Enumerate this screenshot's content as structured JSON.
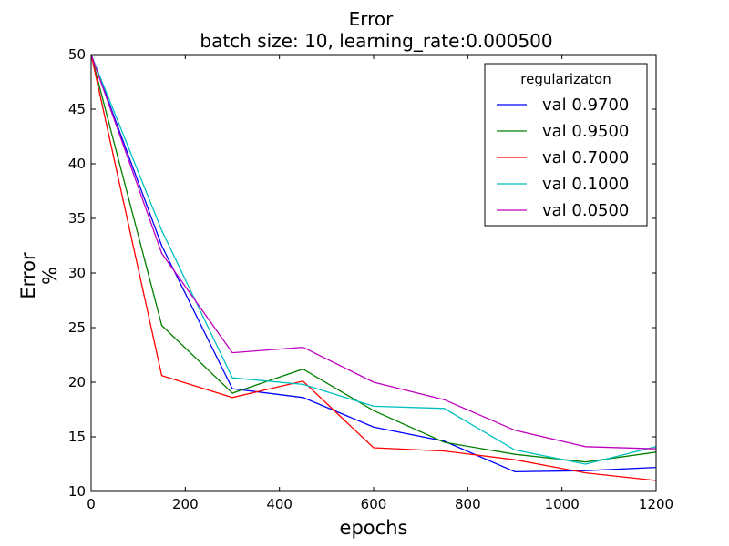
{
  "chart_data": {
    "type": "line",
    "title": "Error",
    "subtitle": "batch size: 10, learning_rate:0.000500",
    "xlabel": "epochs",
    "ylabel_lines": [
      "Error",
      "%"
    ],
    "xlim": [
      0,
      1200
    ],
    "ylim": [
      10,
      50
    ],
    "xticks": [
      0,
      200,
      400,
      600,
      800,
      1000,
      1200
    ],
    "yticks": [
      10,
      15,
      20,
      25,
      30,
      35,
      40,
      45,
      50
    ],
    "grid": false,
    "legend_title": "regularizaton",
    "legend_position": "top-right",
    "x": [
      0,
      150,
      300,
      450,
      600,
      750,
      900,
      1050,
      1200
    ],
    "series": [
      {
        "name": "val 0.9700",
        "color": "#0000ff",
        "values": [
          50,
          32.5,
          19.4,
          18.6,
          15.9,
          14.6,
          11.8,
          11.9,
          12.2
        ]
      },
      {
        "name": "val 0.9500",
        "color": "#008000",
        "values": [
          50,
          25.2,
          19.0,
          21.2,
          17.4,
          14.5,
          13.4,
          12.7,
          13.6
        ]
      },
      {
        "name": "val 0.7000",
        "color": "#ff0000",
        "values": [
          50,
          20.6,
          18.6,
          20.1,
          14.0,
          13.7,
          12.9,
          11.7,
          11.0
        ]
      },
      {
        "name": "val 0.1000",
        "color": "#00bfbf",
        "values": [
          50,
          33.9,
          20.4,
          19.8,
          17.8,
          17.6,
          13.8,
          12.5,
          14.1
        ]
      },
      {
        "name": "val 0.0500",
        "color": "#bf00bf",
        "values": [
          50,
          31.8,
          22.7,
          23.2,
          20.0,
          18.4,
          15.6,
          14.1,
          13.9
        ]
      }
    ]
  }
}
